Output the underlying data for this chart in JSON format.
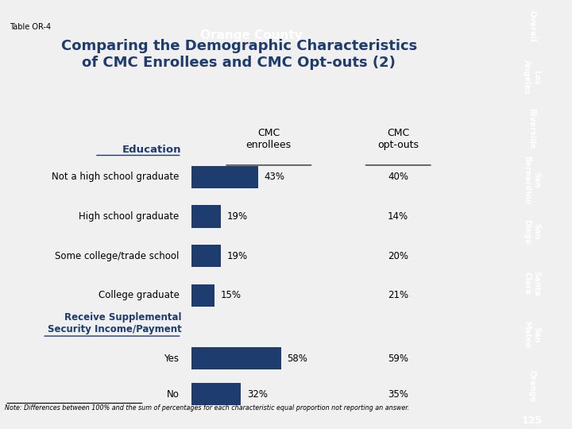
{
  "title_line1": "Comparing the Demographic Characteristics",
  "title_line2": "of CMC Enrollees and CMC Opt-outs (2)",
  "header_text": "Orange County",
  "table_label": "Table OR-4",
  "col1_header": "CMC\nenrollees",
  "col2_header": "CMC\nopt-outs",
  "section1_header": "Education",
  "section2_header": "Receive Supplemental\nSecurity Income/Payment",
  "rows": [
    {
      "label": "Not a high school graduate",
      "bar_val": 43,
      "opt_val": "40%"
    },
    {
      "label": "High school graduate",
      "bar_val": 19,
      "opt_val": "14%"
    },
    {
      "label": "Some college/trade school",
      "bar_val": 19,
      "opt_val": "20%"
    },
    {
      "label": "College graduate",
      "bar_val": 15,
      "opt_val": "21%"
    },
    {
      "label": "Yes",
      "bar_val": 58,
      "opt_val": "59%"
    },
    {
      "label": "No",
      "bar_val": 32,
      "opt_val": "35%"
    }
  ],
  "note": "Note: Differences between 100% and the sum of percentages for each characteristic equal proportion not reporting an answer.",
  "bar_color": "#1F3C6E",
  "title_color": "#1F3C6E",
  "header_bg": "#1F3C6E",
  "header_fg": "#FFFFFF",
  "top_stripe_color": "#6AAB3A",
  "side_tab_colors": [
    "#D17C1C",
    "#D17C1C",
    "#D17C1C",
    "#D17C1C",
    "#D17C1C",
    "#D17C1C",
    "#D17C1C",
    "#1F3C6E"
  ],
  "side_tab_labels": [
    "Overall",
    "Los\nAngeles",
    "Riverside",
    "San\nBernardino",
    "San\nDiego",
    "Santa\nClara",
    "San\nMateo",
    "Orange"
  ],
  "page_num": "125",
  "page_num_bg": "#9B1C2E",
  "bg_color": "#F0F0F0"
}
